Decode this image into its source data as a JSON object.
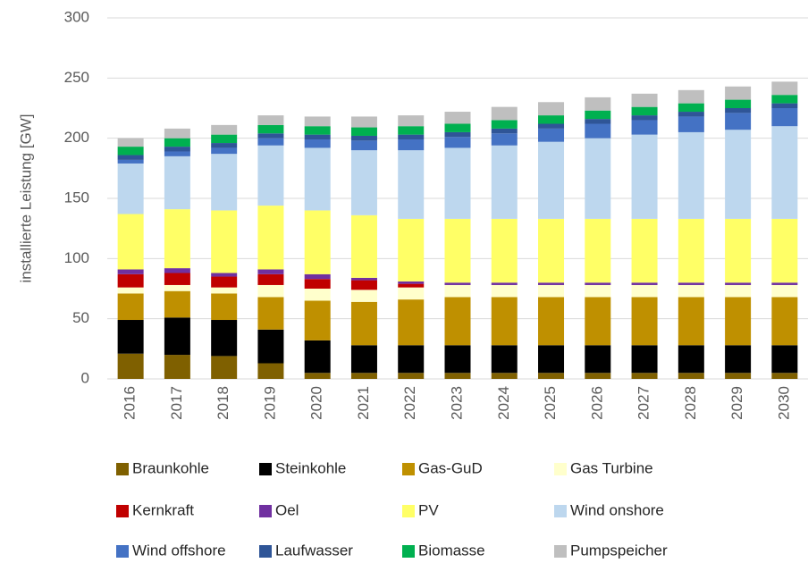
{
  "chart_data": {
    "type": "stacked_bar",
    "y_label": "installierte Leistung [GW]",
    "categories": [
      "2016",
      "2017",
      "2018",
      "2019",
      "2020",
      "2021",
      "2022",
      "2023",
      "2024",
      "2025",
      "2026",
      "2027",
      "2028",
      "2029",
      "2030"
    ],
    "ylim": [
      0,
      300
    ],
    "yticks": [
      0,
      50,
      100,
      150,
      200,
      250,
      300
    ],
    "grid": true,
    "series": [
      {
        "name": "Braunkohle",
        "color": "#7f6000",
        "values": [
          21,
          20,
          19,
          13,
          5,
          5,
          5,
          5,
          5,
          5,
          5,
          5,
          5,
          5,
          5
        ]
      },
      {
        "name": "Steinkohle",
        "color": "#000000",
        "values": [
          28,
          31,
          30,
          28,
          27,
          23,
          23,
          23,
          23,
          23,
          23,
          23,
          23,
          23,
          23
        ]
      },
      {
        "name": "Gas-GuD",
        "color": "#bf9000",
        "values": [
          22,
          22,
          22,
          27,
          33,
          36,
          38,
          40,
          40,
          40,
          40,
          40,
          40,
          40,
          40
        ]
      },
      {
        "name": "Gas Turbine",
        "color": "#ffffcc",
        "values": [
          5,
          5,
          5,
          10,
          10,
          10,
          10,
          10,
          10,
          10,
          10,
          10,
          10,
          10,
          10
        ]
      },
      {
        "name": "Kernkraft",
        "color": "#c00000",
        "values": [
          11,
          10,
          9,
          9,
          8,
          8,
          3,
          0,
          0,
          0,
          0,
          0,
          0,
          0,
          0
        ]
      },
      {
        "name": "Oel",
        "color": "#7030a0",
        "values": [
          4,
          4,
          3,
          4,
          4,
          2,
          2,
          2,
          2,
          2,
          2,
          2,
          2,
          2,
          2
        ]
      },
      {
        "name": "PV",
        "color": "#ffff66",
        "values": [
          46,
          49,
          52,
          53,
          53,
          52,
          52,
          53,
          53,
          53,
          53,
          53,
          53,
          53,
          53
        ]
      },
      {
        "name": "Wind onshore",
        "color": "#bdd7ee",
        "values": [
          42,
          44,
          47,
          50,
          52,
          54,
          57,
          59,
          61,
          64,
          67,
          70,
          72,
          74,
          77
        ]
      },
      {
        "name": "Wind offshore",
        "color": "#4472c4",
        "values": [
          3,
          4,
          5,
          6,
          7,
          8,
          9,
          9,
          10,
          11,
          12,
          12,
          13,
          14,
          15
        ]
      },
      {
        "name": "Laufwasser",
        "color": "#2f5597",
        "values": [
          4,
          4,
          4,
          4,
          4,
          4,
          4,
          4,
          4,
          4,
          4,
          4,
          4,
          4,
          4
        ]
      },
      {
        "name": "Biomasse",
        "color": "#00b050",
        "values": [
          7,
          7,
          7,
          7,
          7,
          7,
          7,
          7,
          7,
          7,
          7,
          7,
          7,
          7,
          7
        ]
      },
      {
        "name": "Pumpspeicher",
        "color": "#bfbfbf",
        "values": [
          7,
          8,
          8,
          8,
          8,
          9,
          9,
          10,
          11,
          11,
          11,
          11,
          11,
          11,
          11
        ]
      }
    ]
  }
}
